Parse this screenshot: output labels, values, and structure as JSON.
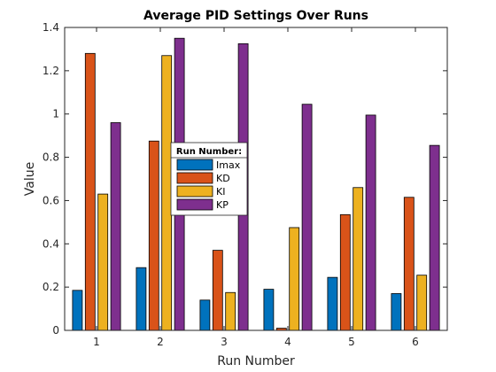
{
  "chart_data": {
    "type": "bar",
    "title": "Average PID Settings Over Runs",
    "xlabel": "Run Number",
    "ylabel": "Value",
    "categories": [
      "1",
      "2",
      "3",
      "4",
      "5",
      "6"
    ],
    "ylim": [
      0,
      1.4
    ],
    "yticks": [
      0,
      0.2,
      0.4,
      0.6,
      0.8,
      1,
      1.2,
      1.4
    ],
    "grid": false,
    "legend": {
      "title": "Run Number:",
      "placement": "center"
    },
    "series": [
      {
        "name": "Imax",
        "color": "#0072BD",
        "values": [
          0.185,
          0.29,
          0.14,
          0.19,
          0.245,
          0.17
        ]
      },
      {
        "name": "KD",
        "color": "#D95319",
        "values": [
          1.28,
          0.875,
          0.37,
          0.01,
          0.535,
          0.615
        ]
      },
      {
        "name": "KI",
        "color": "#EDB120",
        "values": [
          0.63,
          1.27,
          0.175,
          0.475,
          0.66,
          0.255
        ]
      },
      {
        "name": "KP",
        "color": "#7E2F8E",
        "values": [
          0.96,
          1.35,
          1.325,
          1.045,
          0.995,
          0.855
        ]
      }
    ]
  }
}
